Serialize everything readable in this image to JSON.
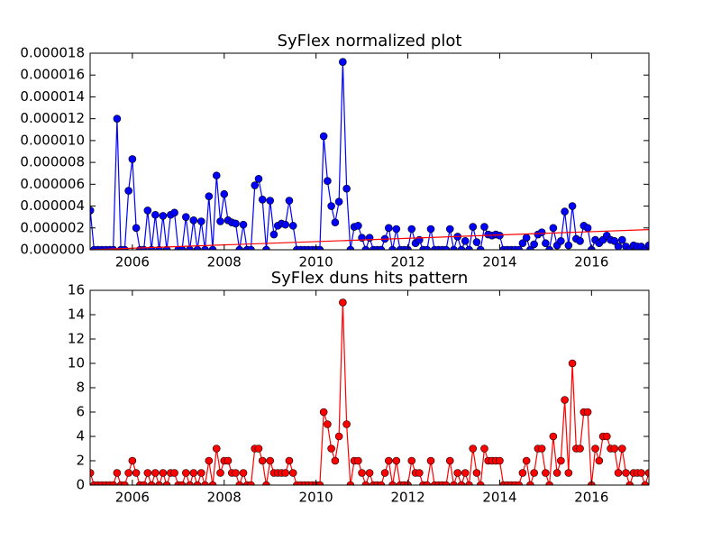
{
  "chart_data": [
    {
      "type": "line",
      "title": "SyFlex normalized plot",
      "x": [
        2005.083,
        2005.167,
        2005.25,
        2005.333,
        2005.417,
        2005.5,
        2005.583,
        2005.667,
        2005.75,
        2005.833,
        2005.917,
        2006,
        2006.083,
        2006.167,
        2006.25,
        2006.333,
        2006.417,
        2006.5,
        2006.583,
        2006.667,
        2006.75,
        2006.833,
        2006.917,
        2007,
        2007.083,
        2007.167,
        2007.25,
        2007.333,
        2007.417,
        2007.5,
        2007.583,
        2007.667,
        2007.75,
        2007.833,
        2007.917,
        2008,
        2008.083,
        2008.167,
        2008.25,
        2008.333,
        2008.417,
        2008.5,
        2008.583,
        2008.667,
        2008.75,
        2008.833,
        2008.917,
        2009,
        2009.083,
        2009.167,
        2009.25,
        2009.333,
        2009.417,
        2009.5,
        2009.583,
        2009.667,
        2009.75,
        2009.833,
        2009.917,
        2010,
        2010.083,
        2010.167,
        2010.25,
        2010.333,
        2010.417,
        2010.5,
        2010.583,
        2010.667,
        2010.75,
        2010.833,
        2010.917,
        2011,
        2011.083,
        2011.167,
        2011.25,
        2011.333,
        2011.417,
        2011.5,
        2011.583,
        2011.667,
        2011.75,
        2011.833,
        2011.917,
        2012,
        2012.083,
        2012.167,
        2012.25,
        2012.333,
        2012.417,
        2012.5,
        2012.583,
        2012.667,
        2012.75,
        2012.833,
        2012.917,
        2013,
        2013.083,
        2013.167,
        2013.25,
        2013.333,
        2013.417,
        2013.5,
        2013.583,
        2013.667,
        2013.75,
        2013.833,
        2013.917,
        2014,
        2014.083,
        2014.167,
        2014.25,
        2014.333,
        2014.417,
        2014.5,
        2014.583,
        2014.667,
        2014.75,
        2014.833,
        2014.917,
        2015,
        2015.083,
        2015.167,
        2015.25,
        2015.333,
        2015.417,
        2015.5,
        2015.583,
        2015.667,
        2015.75,
        2015.833,
        2015.917,
        2016,
        2016.083,
        2016.167,
        2016.25,
        2016.333,
        2016.417,
        2016.5,
        2016.583,
        2016.667,
        2016.75,
        2016.833,
        2016.917,
        2017,
        2017.083,
        2017.167,
        2017.25
      ],
      "series": [
        {
          "color": "#0000ff",
          "values": [
            3.6e-06,
            0,
            0,
            0,
            0,
            0,
            0,
            1.2e-05,
            0,
            0,
            5.4e-06,
            8.3e-06,
            2e-06,
            0,
            0,
            3.6e-06,
            0,
            3.2e-06,
            0,
            3.1e-06,
            0,
            3.2e-06,
            3.4e-06,
            0,
            0,
            3e-06,
            0,
            2.7e-06,
            0,
            2.6e-06,
            0,
            4.9e-06,
            0,
            6.8e-06,
            2.6e-06,
            5.1e-06,
            2.7e-06,
            2.5e-06,
            2.4e-06,
            0,
            2.3e-06,
            0,
            0,
            5.9e-06,
            6.5e-06,
            4.6e-06,
            0,
            4.5e-06,
            1.4e-06,
            2.2e-06,
            2.4e-06,
            2.3e-06,
            4.5e-06,
            2.2e-06,
            0,
            0,
            0,
            0,
            0,
            0,
            0,
            1.04e-05,
            6.3e-06,
            4e-06,
            2.5e-06,
            4.4e-06,
            1.72e-05,
            5.6e-06,
            0,
            2.1e-06,
            2.2e-06,
            1.1e-06,
            0,
            1.1e-06,
            0,
            0,
            0,
            1e-06,
            2e-06,
            0,
            1.9e-06,
            0,
            0,
            0,
            1.9e-06,
            6e-07,
            9e-07,
            0,
            0,
            1.9e-06,
            0,
            0,
            0,
            0,
            1.9e-06,
            0,
            1.2e-06,
            0,
            8e-07,
            0,
            2.1e-06,
            7e-07,
            0,
            2.1e-06,
            1.4e-06,
            1.3e-06,
            1.4e-06,
            1.3e-06,
            0,
            0,
            0,
            0,
            0,
            6e-07,
            1.1e-06,
            0,
            5e-07,
            1.4e-06,
            1.6e-06,
            6e-07,
            0,
            2e-06,
            4e-07,
            8e-07,
            3.5e-06,
            4e-07,
            4e-06,
            1e-06,
            8e-07,
            2.2e-06,
            2e-06,
            0,
            9e-07,
            6e-07,
            9e-07,
            1.3e-06,
            9e-07,
            8e-07,
            3e-07,
            9e-07,
            3e-07,
            0,
            4e-07,
            3e-07,
            3e-07,
            0,
            4e-07
          ]
        }
      ],
      "trend": {
        "color": "#ff0000",
        "x": [
          2005.083,
          2017.25
        ],
        "values": [
          0,
          1.85e-06
        ]
      },
      "xlim": [
        2005.08,
        2017.25
      ],
      "ylim": [
        0,
        1.8e-05
      ],
      "xticks": [
        2006,
        2008,
        2010,
        2012,
        2014,
        2016
      ],
      "yticks": [
        {
          "value": 0,
          "label": "0.000000"
        },
        {
          "value": 2e-06,
          "label": "0.000002"
        },
        {
          "value": 4e-06,
          "label": "0.000004"
        },
        {
          "value": 6e-06,
          "label": "0.000006"
        },
        {
          "value": 8e-06,
          "label": "0.000008"
        },
        {
          "value": 1e-05,
          "label": "0.000010"
        },
        {
          "value": 1.2e-05,
          "label": "0.000012"
        },
        {
          "value": 1.4e-05,
          "label": "0.000014"
        },
        {
          "value": 1.6e-05,
          "label": "0.000016"
        },
        {
          "value": 1.8e-05,
          "label": "0.000018"
        }
      ]
    },
    {
      "type": "line",
      "title": "SyFlex duns hits pattern",
      "x": [
        2005.083,
        2005.167,
        2005.25,
        2005.333,
        2005.417,
        2005.5,
        2005.583,
        2005.667,
        2005.75,
        2005.833,
        2005.917,
        2006,
        2006.083,
        2006.167,
        2006.25,
        2006.333,
        2006.417,
        2006.5,
        2006.583,
        2006.667,
        2006.75,
        2006.833,
        2006.917,
        2007,
        2007.083,
        2007.167,
        2007.25,
        2007.333,
        2007.417,
        2007.5,
        2007.583,
        2007.667,
        2007.75,
        2007.833,
        2007.917,
        2008,
        2008.083,
        2008.167,
        2008.25,
        2008.333,
        2008.417,
        2008.5,
        2008.583,
        2008.667,
        2008.75,
        2008.833,
        2008.917,
        2009,
        2009.083,
        2009.167,
        2009.25,
        2009.333,
        2009.417,
        2009.5,
        2009.583,
        2009.667,
        2009.75,
        2009.833,
        2009.917,
        2010,
        2010.083,
        2010.167,
        2010.25,
        2010.333,
        2010.417,
        2010.5,
        2010.583,
        2010.667,
        2010.75,
        2010.833,
        2010.917,
        2011,
        2011.083,
        2011.167,
        2011.25,
        2011.333,
        2011.417,
        2011.5,
        2011.583,
        2011.667,
        2011.75,
        2011.833,
        2011.917,
        2012,
        2012.083,
        2012.167,
        2012.25,
        2012.333,
        2012.417,
        2012.5,
        2012.583,
        2012.667,
        2012.75,
        2012.833,
        2012.917,
        2013,
        2013.083,
        2013.167,
        2013.25,
        2013.333,
        2013.417,
        2013.5,
        2013.583,
        2013.667,
        2013.75,
        2013.833,
        2013.917,
        2014,
        2014.083,
        2014.167,
        2014.25,
        2014.333,
        2014.417,
        2014.5,
        2014.583,
        2014.667,
        2014.75,
        2014.833,
        2014.917,
        2015,
        2015.083,
        2015.167,
        2015.25,
        2015.333,
        2015.417,
        2015.5,
        2015.583,
        2015.667,
        2015.75,
        2015.833,
        2015.917,
        2016,
        2016.083,
        2016.167,
        2016.25,
        2016.333,
        2016.417,
        2016.5,
        2016.583,
        2016.667,
        2016.75,
        2016.833,
        2016.917,
        2017,
        2017.083,
        2017.167,
        2017.25
      ],
      "series": [
        {
          "color": "#ff0000",
          "values": [
            1,
            0,
            0,
            0,
            0,
            0,
            0,
            1,
            0,
            0,
            1,
            2,
            1,
            0,
            0,
            1,
            0,
            1,
            0,
            1,
            0,
            1,
            1,
            0,
            0,
            1,
            0,
            1,
            0,
            1,
            0,
            2,
            0,
            3,
            1,
            2,
            2,
            1,
            1,
            0,
            1,
            0,
            0,
            3,
            3,
            2,
            0,
            2,
            1,
            1,
            1,
            1,
            2,
            1,
            0,
            0,
            0,
            0,
            0,
            0,
            0,
            6,
            5,
            3,
            2,
            4,
            15,
            5,
            0,
            2,
            2,
            1,
            0,
            1,
            0,
            0,
            0,
            1,
            2,
            0,
            2,
            0,
            0,
            0,
            2,
            1,
            1,
            0,
            0,
            2,
            0,
            0,
            0,
            0,
            2,
            0,
            1,
            0,
            1,
            0,
            3,
            1,
            0,
            3,
            2,
            2,
            2,
            2,
            0,
            0,
            0,
            0,
            0,
            1,
            2,
            0,
            1,
            3,
            3,
            1,
            0,
            4,
            1,
            2,
            7,
            1,
            10,
            3,
            3,
            6,
            6,
            0,
            3,
            2,
            4,
            4,
            3,
            3,
            1,
            3,
            1,
            0,
            1,
            1,
            1,
            0,
            1
          ]
        }
      ],
      "xlim": [
        2005.08,
        2017.25
      ],
      "ylim": [
        0,
        16
      ],
      "xticks": [
        2006,
        2008,
        2010,
        2012,
        2014,
        2016
      ],
      "yticks": [
        0,
        2,
        4,
        6,
        8,
        10,
        12,
        14,
        16
      ]
    }
  ]
}
